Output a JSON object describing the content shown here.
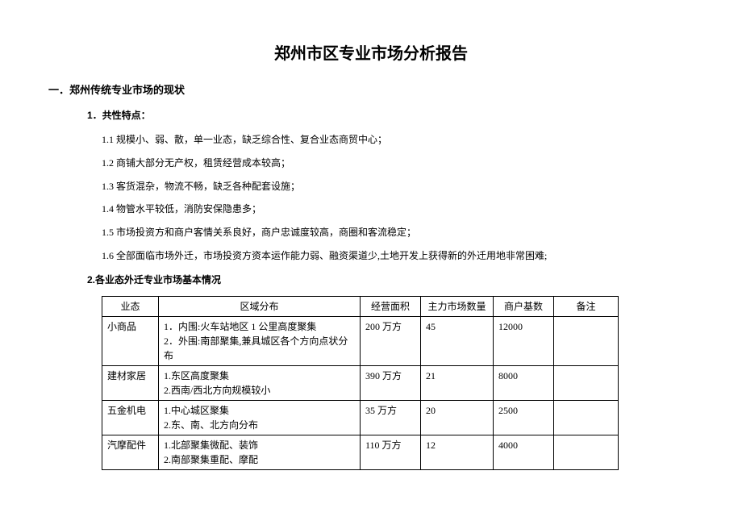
{
  "title": "郑州市区专业市场分析报告",
  "section1": {
    "heading": "一．郑州传统专业市场的现状",
    "sub1": "1．共性特点：",
    "lines": [
      "1.1 规模小、弱、散，单一业态，缺乏综合性、复合业态商贸中心；",
      "1.2 商铺大部分无产权，租赁经营成本较高；",
      "1.3 客货混杂，物流不畅，缺乏各种配套设施；",
      "1.4 物管水平较低，消防安保隐患多；",
      "1.5 市场投资方和商户客情关系良好，商户忠诚度较高，商圈和客流稳定；",
      "1.6 全部面临市场外迁，市场投资方资本运作能力弱、融资渠道少,土地开发上获得新的外迁用地非常困难;"
    ],
    "sub2": "2.各业态外迁专业市场基本情况"
  },
  "table": {
    "headers": {
      "cat": "业态",
      "dist": "区域分布",
      "area": "经营面积",
      "count": "主力市场数量",
      "base": "商户基数",
      "note": "备注"
    },
    "rows": [
      {
        "cat": "小商品",
        "dist": "1．内围:火车站地区 1 公里高度聚集\n2．外围:南部聚集,兼具城区各个方向点状分布",
        "area": "200 万方",
        "count": "45",
        "base": "12000",
        "note": ""
      },
      {
        "cat": "建材家居",
        "dist": "1.东区高度聚集\n2.西南/西北方向规模较小",
        "area": "390 万方",
        "count": "21",
        "base": "8000",
        "note": ""
      },
      {
        "cat": "五金机电",
        "dist": "1.中心城区聚集\n2.东、南、北方向分布",
        "area": "35 万方",
        "count": "20",
        "base": "2500",
        "note": ""
      },
      {
        "cat": "汽摩配件",
        "dist": "1.北部聚集微配、装饰\n2.南部聚集重配、摩配",
        "area": "110 万方",
        "count": "12",
        "base": "4000",
        "note": ""
      }
    ]
  }
}
